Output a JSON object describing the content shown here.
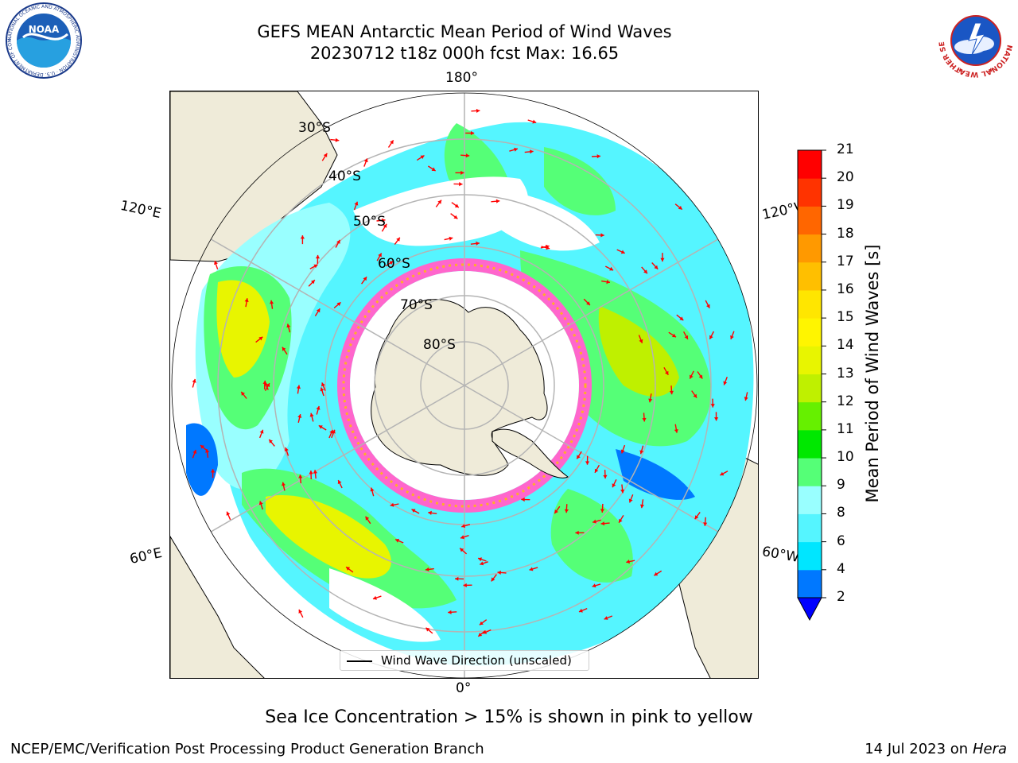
{
  "title": {
    "line1": "GEFS MEAN Antarctic Mean Period of Wind Waves",
    "line2": "20230712 t18z 000h fcst   Max: 16.65"
  },
  "logos": {
    "noaa_text": "NOAA",
    "noaa_ring": "NATIONAL OCEANIC AND ATMOSPHERIC ADMINISTRATION · U.S. DEPARTMENT OF COMMERCE",
    "nws_ring": "NATIONAL WEATHER SERVICE"
  },
  "map": {
    "projection": "south polar stereographic",
    "meridian_labels": {
      "top": "180°",
      "upper_left": "120°E",
      "upper_right": "120°W",
      "lower_left": "60°E",
      "lower_right": "60°W",
      "bottom": "0°"
    },
    "latitude_labels": [
      "30°S",
      "40°S",
      "50°S",
      "60°S",
      "70°S",
      "80°S"
    ],
    "legend_label": "Wind Wave Direction (unscaled)",
    "colors": {
      "land": "#efebd9",
      "ocean_no_data": "#ffffff",
      "gridline": "#b4b4b4",
      "arrow": "#ff0000",
      "sea_ice": "#ff66cc"
    }
  },
  "colorbar": {
    "title": "Mean Period of Wind Waves [s]",
    "ticks": [
      "2",
      "4",
      "6",
      "8",
      "9",
      "10",
      "11",
      "12",
      "13",
      "14",
      "15",
      "16",
      "17",
      "18",
      "19",
      "20",
      "21"
    ],
    "colors": [
      "#0078ff",
      "#00e6ff",
      "#55f5ff",
      "#99ffff",
      "#55ff77",
      "#00e800",
      "#66f000",
      "#bff000",
      "#e8f500",
      "#fff500",
      "#ffe600",
      "#ffbf00",
      "#ff9900",
      "#ff6600",
      "#ff3300",
      "#ff0000"
    ],
    "extend_color": "#0000ff"
  },
  "caption": "Sea Ice Concentration > 15% is shown in pink to yellow",
  "footer": {
    "left": "NCEP/EMC/Verification Post Processing Product Generation Branch",
    "right_prefix": "14 Jul 2023 on ",
    "right_em": "Hera"
  }
}
